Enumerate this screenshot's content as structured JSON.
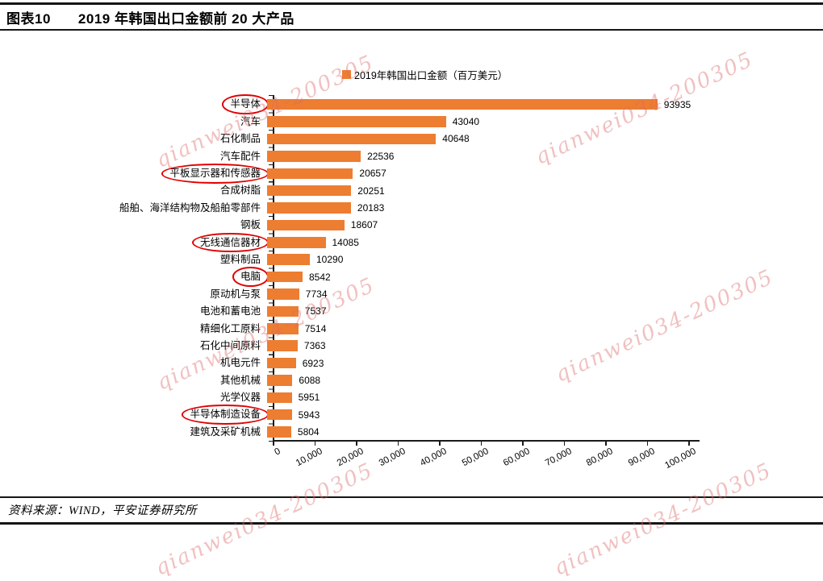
{
  "figure": {
    "label": "图表10",
    "title": "2019 年韩国出口金额前 20 大产品"
  },
  "legend": {
    "label": "2019年韩国出口金额（百万美元）",
    "swatch_color": "#ED7D31"
  },
  "chart_data": {
    "type": "bar",
    "orientation": "horizontal",
    "title": "2019年韩国出口金额（百万美元）",
    "categories": [
      "半导体",
      "汽车",
      "石化制品",
      "汽车配件",
      "平板显示器和传感器",
      "合成树脂",
      "船舶、海洋结构物及船舶零部件",
      "钢板",
      "无线通信器材",
      "塑料制品",
      "电脑",
      "原动机与泵",
      "电池和蓄电池",
      "精细化工原料",
      "石化中间原料",
      "机电元件",
      "其他机械",
      "光学仪器",
      "半导体制造设备",
      "建筑及采矿机械"
    ],
    "values": [
      93935,
      43040,
      40648,
      22536,
      20657,
      20251,
      20183,
      18607,
      14085,
      10290,
      8542,
      7734,
      7537,
      7514,
      7363,
      6923,
      6088,
      5951,
      5943,
      5804
    ],
    "circled_categories": [
      "半导体",
      "平板显示器和传感器",
      "无线通信器材",
      "电脑",
      "半导体制造设备"
    ],
    "x_ticks": [
      "0",
      "10,000",
      "20,000",
      "30,000",
      "40,000",
      "50,000",
      "60,000",
      "70,000",
      "80,000",
      "90,000",
      "100,000"
    ],
    "xlim": [
      0,
      100000
    ],
    "bar_color": "#ED7D31",
    "annotation_color": "#E00000",
    "legend_position": "top",
    "grid": false
  },
  "source": {
    "text": "资料来源：WIND，平安证券研究所"
  },
  "watermark": {
    "text": "qianwei034-200305",
    "color": "#DE6A6A"
  }
}
